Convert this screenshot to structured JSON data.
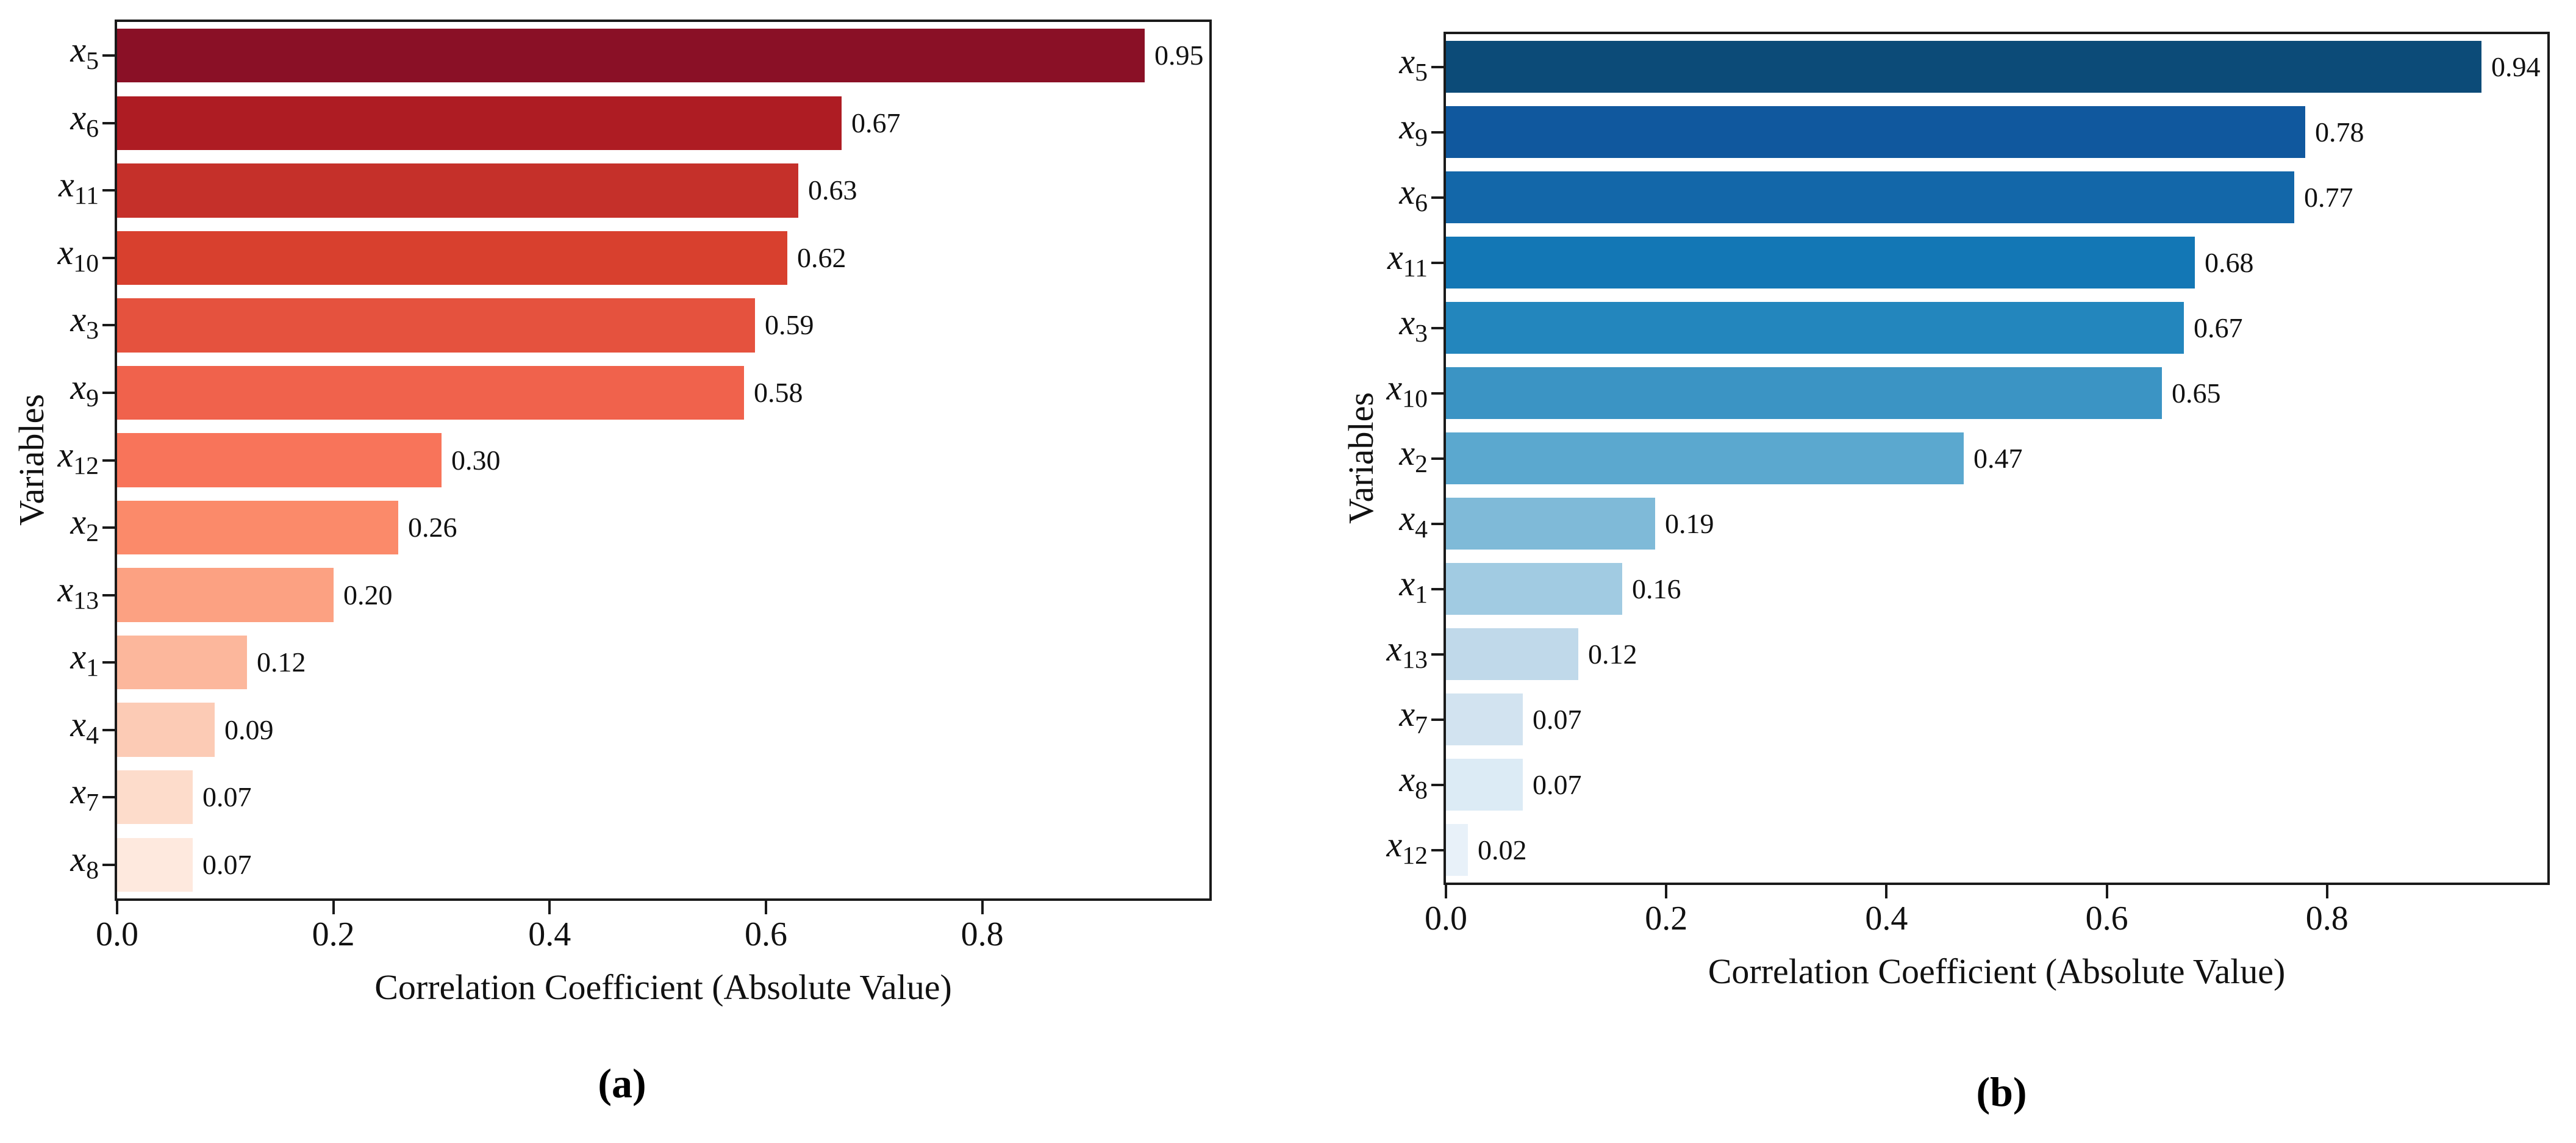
{
  "figure": {
    "background_color": "#ffffff",
    "spine_color": "#1a1a1a",
    "captions": {
      "a": "(a)",
      "b": "(b)"
    }
  },
  "chart_data": [
    {
      "type": "bar",
      "orientation": "horizontal",
      "panel": "a",
      "xlabel": "Correlation Coefficient (Absolute Value)",
      "ylabel": "Variables",
      "xlim": [
        0.0,
        1.0
      ],
      "grid": false,
      "legend": null,
      "colormap": "Reds (dark to light by rank)",
      "xtick_labels": [
        "0.0",
        "0.2",
        "0.4",
        "0.6",
        "0.8"
      ],
      "xtick_values": [
        0.0,
        0.2,
        0.4,
        0.6,
        0.8
      ],
      "categories": [
        "x5",
        "x6",
        "x11",
        "x10",
        "x3",
        "x9",
        "x12",
        "x2",
        "x13",
        "x1",
        "x4",
        "x7",
        "x8"
      ],
      "values": [
        0.95,
        0.67,
        0.63,
        0.62,
        0.59,
        0.58,
        0.3,
        0.26,
        0.2,
        0.12,
        0.09,
        0.07,
        0.07
      ],
      "value_labels": [
        "0.95",
        "0.67",
        "0.63",
        "0.62",
        "0.59",
        "0.58",
        "0.30",
        "0.26",
        "0.20",
        "0.12",
        "0.09",
        "0.07",
        "0.07"
      ],
      "bar_colors": [
        "#8a1026",
        "#ae1c23",
        "#c5302a",
        "#d8402e",
        "#e5523e",
        "#f0624c",
        "#f8745a",
        "#fb8a6a",
        "#fca182",
        "#fcb79c",
        "#fccbb5",
        "#fddccb",
        "#fee9de"
      ]
    },
    {
      "type": "bar",
      "orientation": "horizontal",
      "panel": "b",
      "xlabel": "Correlation Coefficient (Absolute Value)",
      "ylabel": "Variables",
      "xlim": [
        0.0,
        1.0
      ],
      "grid": false,
      "legend": null,
      "colormap": "Blues (dark to light by rank)",
      "xtick_labels": [
        "0.0",
        "0.2",
        "0.4",
        "0.6",
        "0.8"
      ],
      "xtick_values": [
        0.0,
        0.2,
        0.4,
        0.6,
        0.8
      ],
      "categories": [
        "x5",
        "x9",
        "x6",
        "x11",
        "x3",
        "x10",
        "x2",
        "x4",
        "x1",
        "x13",
        "x7",
        "x8",
        "x12"
      ],
      "values": [
        0.94,
        0.78,
        0.77,
        0.68,
        0.67,
        0.65,
        0.47,
        0.19,
        0.16,
        0.12,
        0.07,
        0.07,
        0.02
      ],
      "value_labels": [
        "0.94",
        "0.78",
        "0.77",
        "0.68",
        "0.67",
        "0.65",
        "0.47",
        "0.19",
        "0.16",
        "0.12",
        "0.07",
        "0.07",
        "0.02"
      ],
      "bar_colors": [
        "#0c4b78",
        "#10589e",
        "#1367a9",
        "#1377b5",
        "#2386bd",
        "#3b94c4",
        "#5ba8cf",
        "#7fbad8",
        "#a1cbe2",
        "#c0d9ea",
        "#d2e3f0",
        "#dcebf5",
        "#e8f1f9"
      ]
    }
  ]
}
